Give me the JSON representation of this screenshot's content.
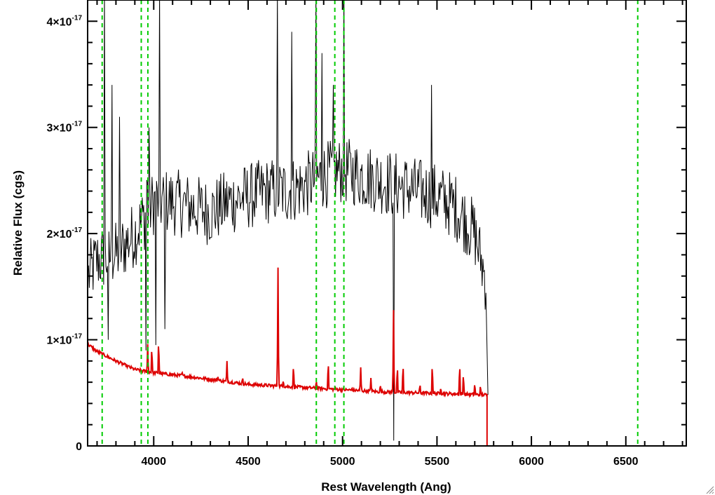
{
  "chart_data": {
    "type": "line",
    "title": "",
    "xlabel": "Rest Wavelength (Ang)",
    "ylabel": "Relative Flux (cgs)",
    "xlim": [
      3650,
      6820
    ],
    "ylim": [
      0,
      4.2e-17
    ],
    "grid": false,
    "legend": "none",
    "xticks": {
      "major": [
        {
          "value": 4000,
          "label": "4000"
        },
        {
          "value": 4500,
          "label": "4500"
        },
        {
          "value": 5000,
          "label": "5000"
        },
        {
          "value": 5500,
          "label": "5500"
        },
        {
          "value": 6000,
          "label": "6000"
        },
        {
          "value": 6500,
          "label": "6500"
        }
      ],
      "minor_step": 100
    },
    "yticks": {
      "major": [
        {
          "value": 0,
          "mantissa": "0",
          "exponent": ""
        },
        {
          "value": 1e-17,
          "mantissa": "1×10",
          "exponent": "-17"
        },
        {
          "value": 2e-17,
          "mantissa": "2×10",
          "exponent": "-17"
        },
        {
          "value": 3e-17,
          "mantissa": "3×10",
          "exponent": "-17"
        },
        {
          "value": 4e-17,
          "mantissa": "4×10",
          "exponent": "-17"
        }
      ],
      "minor_step": 2e-18
    },
    "series": [
      {
        "color": "#000000",
        "x_start": 3655,
        "x_end": 5770,
        "note": "observed spectrum",
        "anchors": [
          [
            3655,
            1.6e-17
          ],
          [
            3700,
            1.75e-17
          ],
          [
            3800,
            1.8e-17
          ],
          [
            3900,
            2e-17
          ],
          [
            4000,
            2.3e-17
          ],
          [
            4100,
            2.3e-17
          ],
          [
            4200,
            2.25e-17
          ],
          [
            4300,
            2.2e-17
          ],
          [
            4400,
            2.3e-17
          ],
          [
            4500,
            2.35e-17
          ],
          [
            4600,
            2.4e-17
          ],
          [
            4700,
            2.4e-17
          ],
          [
            4800,
            2.45e-17
          ],
          [
            4900,
            2.55e-17
          ],
          [
            5000,
            2.6e-17
          ],
          [
            5100,
            2.55e-17
          ],
          [
            5200,
            2.5e-17
          ],
          [
            5300,
            2.45e-17
          ],
          [
            5400,
            2.4e-17
          ],
          [
            5500,
            2.35e-17
          ],
          [
            5600,
            2.25e-17
          ],
          [
            5700,
            2e-17
          ],
          [
            5760,
            1.55e-17
          ]
        ],
        "noise": 3.2e-18,
        "spikes": [
          [
            3740,
            4.3e-17
          ],
          [
            3760,
            1e-17
          ],
          [
            3780,
            3.4e-17
          ],
          [
            3820,
            3.1e-17
          ],
          [
            3960,
            9e-18
          ],
          [
            3965,
            2.5e-17
          ],
          [
            3975,
            3e-17
          ],
          [
            4010,
            9.5e-18
          ],
          [
            4030,
            4.3e-17
          ],
          [
            4060,
            1.1e-17
          ],
          [
            4655,
            4.3e-17
          ],
          [
            4730,
            3.9e-17
          ],
          [
            4860,
            4.3e-17
          ],
          [
            4890,
            3.7e-17
          ],
          [
            4950,
            3.4e-17
          ],
          [
            5007,
            4.3e-17
          ],
          [
            5270,
            5e-19
          ],
          [
            5470,
            3.4e-17
          ]
        ],
        "end_drop": [
          5770,
          4.8e-18
        ]
      },
      {
        "color": "#dd0000",
        "note": "model continuum",
        "continuum": [
          [
            3650,
            9.6e-18
          ],
          [
            3700,
            8.9e-18
          ],
          [
            3800,
            8e-18
          ],
          [
            3900,
            7.2e-18
          ],
          [
            4000,
            6.9e-18
          ],
          [
            4200,
            6.5e-18
          ],
          [
            4500,
            5.8e-18
          ],
          [
            5000,
            5.3e-18
          ],
          [
            5200,
            5.1e-18
          ],
          [
            5400,
            5e-18
          ],
          [
            5600,
            4.9e-18
          ],
          [
            5765,
            4.8e-18
          ]
        ],
        "lines": [
          [
            3968,
            9.6e-18
          ],
          [
            3990,
            9.5e-18
          ],
          [
            4026,
            1.02e-17
          ],
          [
            4150,
            7e-18
          ],
          [
            4340,
            6.5e-18
          ],
          [
            4388,
            8e-18
          ],
          [
            4471,
            6.5e-18
          ],
          [
            4658,
            1.68e-17
          ],
          [
            4686,
            6.2e-18
          ],
          [
            4740,
            7.8e-18
          ],
          [
            4861,
            6.2e-18
          ],
          [
            4924,
            8.2e-18
          ],
          [
            5050,
            5.5e-18
          ],
          [
            5096,
            7.4e-18
          ],
          [
            5150,
            6.4e-18
          ],
          [
            5200,
            5.8e-18
          ],
          [
            5270,
            1.28e-17
          ],
          [
            5290,
            7.8e-18
          ],
          [
            5320,
            8e-18
          ],
          [
            5410,
            5.9e-18
          ],
          [
            5475,
            8e-18
          ],
          [
            5520,
            5.5e-18
          ],
          [
            5620,
            8e-18
          ],
          [
            5640,
            7e-18
          ],
          [
            5700,
            6e-18
          ],
          [
            5730,
            5.8e-18
          ]
        ],
        "drop_to_zero_at": 5765,
        "zero_until": 6820
      }
    ],
    "vertical_lines": {
      "color": "#00cc00",
      "style": "dashed",
      "x": [
        3727,
        3934,
        3969,
        4861,
        4959,
        5007,
        6563
      ]
    }
  }
}
